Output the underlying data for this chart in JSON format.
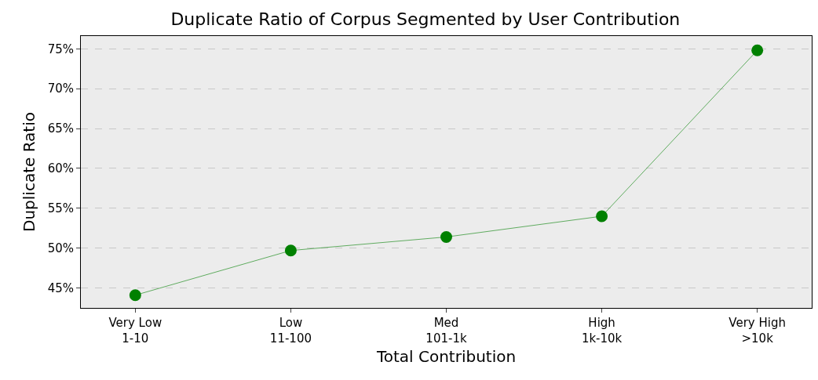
{
  "chart_data": {
    "type": "line",
    "title": "Duplicate Ratio of Corpus Segmented by User Contribution",
    "xlabel": "Total Contribution",
    "ylabel": "Duplicate Ratio",
    "categories": [
      "Very Low\n1-10",
      "Low\n11-100",
      "Med\n101-1k",
      "High\n1k-10k",
      "Very High\n>10k"
    ],
    "series": [
      {
        "color": "#008000",
        "values": [
          44.1,
          49.7,
          51.4,
          54.0,
          74.8
        ]
      }
    ],
    "ylim": [
      42.5,
      76.6
    ],
    "yticks": [
      {
        "value": 45,
        "label": "45%"
      },
      {
        "value": 50,
        "label": "50%"
      },
      {
        "value": 55,
        "label": "55%"
      },
      {
        "value": 60,
        "label": "60%"
      },
      {
        "value": 65,
        "label": "65%"
      },
      {
        "value": 70,
        "label": "70%"
      },
      {
        "value": 75,
        "label": "75%"
      }
    ],
    "grid": "y",
    "marker": "circle",
    "line_style": "solid"
  }
}
